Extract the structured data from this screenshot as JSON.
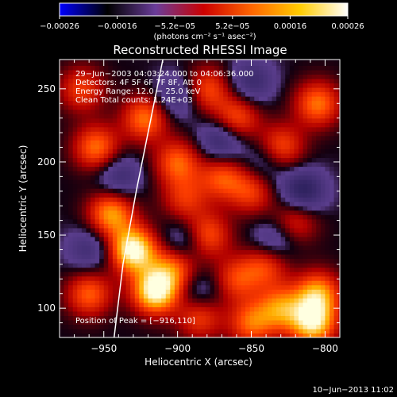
{
  "chart_data": {
    "type": "heatmap",
    "title": "Reconstructed RHESSI Image",
    "xlabel": "Heliocentric X (arcsec)",
    "ylabel": "Heliocentric Y (arcsec)",
    "xlim": [
      -980,
      -790
    ],
    "ylim": [
      80,
      270
    ],
    "xticks": [
      -950,
      -900,
      -850,
      -800
    ],
    "yticks": [
      100,
      150,
      200,
      250
    ],
    "xtick_labels": [
      "−950",
      "−900",
      "−850",
      "−800"
    ],
    "ytick_labels": [
      "100",
      "150",
      "200",
      "250"
    ],
    "colorbar": {
      "range": [
        -0.00026,
        0.00026
      ],
      "tick_labels": [
        "−0.00026",
        "−0.00016",
        "−5.2e−05",
        "5.2e−05",
        "0.00016",
        "0.00026"
      ],
      "unit_label": "(photons cm⁻² s⁻¹ asec⁻²)",
      "colors": [
        "#0000ff",
        "#000000",
        "#6a3d9a",
        "#cc0000",
        "#ff6600",
        "#ffcc00",
        "#ffffff"
      ]
    },
    "annotations": [
      "29−Jun−2003 04:03:24.000 to 04:06:36.000",
      "Detectors: 4F 5F 6F 7F 8F, Att 0",
      "Energy Range: 12.0 − 25.0 keV",
      "Clean     Total counts: 1.24E+03"
    ],
    "peak_label": "Position of Peak = [−916,110]",
    "peak": [
      -916,
      110
    ],
    "limb": [
      [
        -943,
        80
      ],
      [
        -937,
        130
      ],
      [
        -928,
        180
      ],
      [
        -918,
        230
      ],
      [
        -910,
        270
      ]
    ],
    "blobs": [
      {
        "x": -930,
        "y": 140,
        "v": 1.0
      },
      {
        "x": -915,
        "y": 112,
        "v": 1.0
      },
      {
        "x": -945,
        "y": 165,
        "v": 0.7
      },
      {
        "x": -902,
        "y": 128,
        "v": 0.55
      },
      {
        "x": -960,
        "y": 110,
        "v": 0.55
      },
      {
        "x": -922,
        "y": 230,
        "v": 0.6
      },
      {
        "x": -900,
        "y": 200,
        "v": 0.55
      },
      {
        "x": -955,
        "y": 210,
        "v": 0.6
      },
      {
        "x": -965,
        "y": 250,
        "v": 0.45
      },
      {
        "x": -880,
        "y": 250,
        "v": 0.5
      },
      {
        "x": -860,
        "y": 230,
        "v": 0.55
      },
      {
        "x": -870,
        "y": 190,
        "v": 0.5
      },
      {
        "x": -850,
        "y": 180,
        "v": 0.45
      },
      {
        "x": -830,
        "y": 210,
        "v": 0.55
      },
      {
        "x": -805,
        "y": 240,
        "v": 0.6
      },
      {
        "x": -820,
        "y": 160,
        "v": 0.4
      },
      {
        "x": -880,
        "y": 150,
        "v": 0.55
      },
      {
        "x": -860,
        "y": 120,
        "v": 0.45
      },
      {
        "x": -840,
        "y": 130,
        "v": 0.5
      },
      {
        "x": -830,
        "y": 100,
        "v": 0.6
      },
      {
        "x": -805,
        "y": 110,
        "v": 0.7
      },
      {
        "x": -808,
        "y": 90,
        "v": 0.85
      },
      {
        "x": -885,
        "y": 95,
        "v": 0.5
      },
      {
        "x": -850,
        "y": 90,
        "v": 0.55
      },
      {
        "x": -895,
        "y": 175,
        "v": 0.4
      },
      {
        "x": -870,
        "y": 215,
        "v": -0.45
      },
      {
        "x": -850,
        "y": 255,
        "v": -0.35
      },
      {
        "x": -815,
        "y": 180,
        "v": -0.5
      },
      {
        "x": -835,
        "y": 145,
        "v": -0.35
      },
      {
        "x": -895,
        "y": 145,
        "v": -0.35
      },
      {
        "x": -885,
        "y": 110,
        "v": -0.3
      },
      {
        "x": -940,
        "y": 190,
        "v": -0.35
      },
      {
        "x": -960,
        "y": 140,
        "v": -0.3
      },
      {
        "x": -900,
        "y": 245,
        "v": -0.35
      },
      {
        "x": -840,
        "y": 200,
        "v": -0.3
      }
    ]
  },
  "footer": {
    "date": "10−Jun−2013 11:02"
  }
}
